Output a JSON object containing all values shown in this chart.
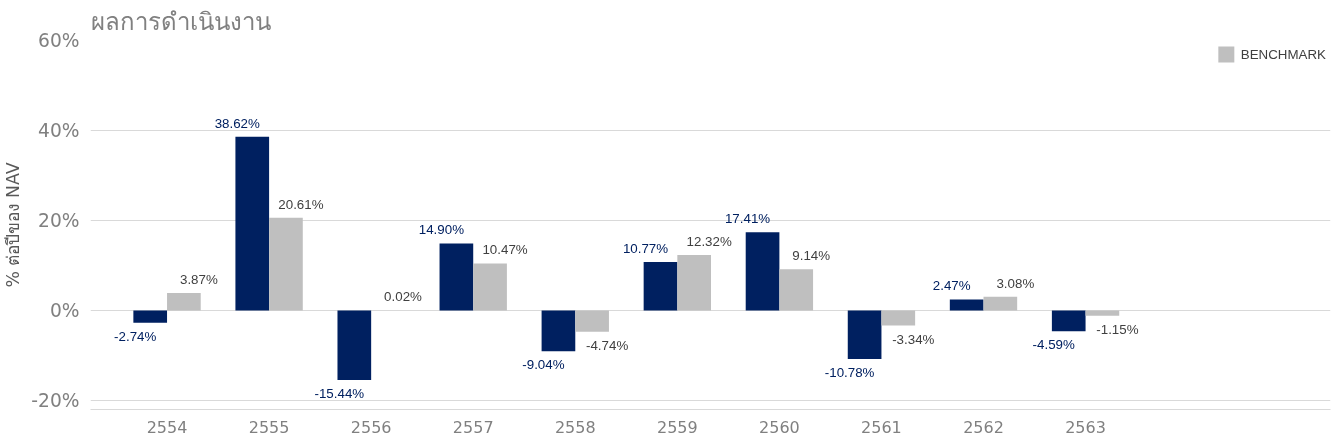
{
  "chart_data": {
    "type": "bar",
    "title": "ผลการดำเนินงาน",
    "ylabel": "% ต่อปีของ NAV",
    "categories": [
      "2554",
      "2555",
      "2556",
      "2557",
      "2558",
      "2559",
      "2560",
      "2561",
      "2562",
      "2563"
    ],
    "series": [
      {
        "color": "#002060",
        "values": [
          -2.74,
          38.62,
          -15.44,
          14.9,
          -9.04,
          10.77,
          17.41,
          -10.78,
          2.47,
          -4.59
        ],
        "value_labels": [
          "-2.74%",
          "38.62%",
          "-15.44%",
          "14.90%",
          "-9.04%",
          "10.77%",
          "17.41%",
          "-10.78%",
          "2.47%",
          "-4.59%"
        ]
      },
      {
        "name": "BENCHMARK",
        "color": "#bfbfbf",
        "values": [
          3.87,
          20.61,
          0.02,
          10.47,
          -4.74,
          12.32,
          9.14,
          -3.34,
          3.08,
          -1.15
        ],
        "value_labels": [
          "3.87%",
          "20.61%",
          "0.02%",
          "10.47%",
          "-4.74%",
          "12.32%",
          "9.14%",
          "-3.34%",
          "3.08%",
          "-1.15%"
        ]
      }
    ],
    "ylim": [
      -22,
      60
    ],
    "yticks": [
      {
        "value": -20,
        "label": "-20%"
      },
      {
        "value": 0,
        "label": "0%"
      },
      {
        "value": 20,
        "label": "20%"
      },
      {
        "value": 40,
        "label": "40%"
      },
      {
        "value": 60,
        "label": "60%"
      }
    ],
    "grid": "y",
    "legend": "right"
  }
}
